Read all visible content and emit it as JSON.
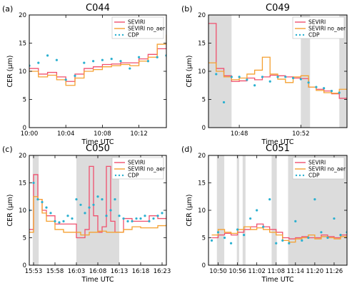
{
  "figure": {
    "ylabel": "CER (μm)",
    "xlabel": "Time UTC",
    "colors": {
      "SEVIRI": "#f0506e",
      "SEVIRI no_aer": "#f5a030",
      "CDP": "#2ab0d0",
      "shade": "#dcdcdc"
    }
  },
  "chart_data": [
    {
      "type": "line",
      "panel_label": "(a)",
      "title": "C044",
      "xlabel": "Time UTC",
      "ylabel": "CER (μm)",
      "xlim": [
        "10:00",
        "10:15"
      ],
      "ylim": [
        0,
        20
      ],
      "yticks": [
        0,
        5,
        10,
        15,
        20
      ],
      "xtick_labels": [
        "10:00",
        "10:04",
        "10:08",
        "10:12"
      ],
      "legend": [
        "SEVIRI",
        "SEVIRI no_aer",
        "CDP"
      ],
      "legend_position": "upper-right",
      "shaded_intervals": [],
      "series": [
        {
          "name": "SEVIRI",
          "style": "step",
          "x": [
            "10:00",
            "10:01",
            "10:02",
            "10:03",
            "10:04",
            "10:05",
            "10:06",
            "10:07",
            "10:08",
            "10:09",
            "10:10",
            "10:11",
            "10:12",
            "10:13",
            "10:14",
            "10:15"
          ],
          "values": [
            10.5,
            9.5,
            9.8,
            9.0,
            8.2,
            9.5,
            10.5,
            10.8,
            11.2,
            11.3,
            11.5,
            11.5,
            12.2,
            13.0,
            14.0,
            15.0
          ]
        },
        {
          "name": "SEVIRI no_aer",
          "style": "step",
          "x": [
            "10:00",
            "10:01",
            "10:02",
            "10:03",
            "10:04",
            "10:05",
            "10:06",
            "10:07",
            "10:08",
            "10:09",
            "10:10",
            "10:11",
            "10:12",
            "10:13",
            "10:14",
            "10:15"
          ],
          "values": [
            10.0,
            9.0,
            9.3,
            8.5,
            7.5,
            8.8,
            10.0,
            10.3,
            10.8,
            11.0,
            11.2,
            11.0,
            11.8,
            12.5,
            14.8,
            16.5
          ]
        },
        {
          "name": "CDP",
          "style": "scatter",
          "x": [
            "10:00",
            "10:01",
            "10:02",
            "10:03",
            "10:04",
            "10:05",
            "10:06",
            "10:07",
            "10:08",
            "10:09",
            "10:10",
            "10:11",
            "10:12",
            "10:13",
            "10:14",
            "10:15"
          ],
          "values": [
            11.0,
            11.5,
            12.8,
            12.0,
            8.5,
            9.2,
            11.5,
            11.8,
            12.0,
            12.2,
            11.8,
            10.5,
            12.5,
            11.8,
            12.5,
            12.8
          ]
        }
      ]
    },
    {
      "type": "line",
      "panel_label": "(b)",
      "title": "C049",
      "xlabel": "Time UTC",
      "ylabel": "CER (μm)",
      "xlim": [
        "10:46",
        "10:55"
      ],
      "ylim": [
        0,
        20
      ],
      "yticks": [
        0,
        5,
        10,
        15,
        20
      ],
      "xtick_labels": [
        "10:48",
        "10:52"
      ],
      "legend": [
        "SEVIRI",
        "SEVIRI no_aer",
        "CDP"
      ],
      "legend_position": "upper-right",
      "shaded_intervals": [
        [
          "10:46",
          "10:47.5"
        ],
        [
          "10:52",
          "10:52.6"
        ],
        [
          "10:54.5",
          "10:55"
        ]
      ],
      "series": [
        {
          "name": "SEVIRI",
          "style": "step",
          "x": [
            "10:46",
            "10:46.5",
            "10:47",
            "10:47.5",
            "10:48",
            "10:48.5",
            "10:49",
            "10:49.5",
            "10:50",
            "10:50.5",
            "10:51",
            "10:51.5",
            "10:52",
            "10:52.5",
            "10:53",
            "10:53.5",
            "10:54",
            "10:54.5",
            "10:55"
          ],
          "values": [
            18.5,
            10.5,
            9.2,
            8.2,
            8.3,
            8.8,
            8.5,
            9.0,
            9.3,
            9.2,
            9.0,
            8.8,
            8.7,
            7.2,
            6.8,
            6.5,
            6.0,
            5.2,
            5.2
          ]
        },
        {
          "name": "SEVIRI no_aer",
          "style": "step",
          "x": [
            "10:46",
            "10:46.5",
            "10:47",
            "10:47.5",
            "10:48",
            "10:48.5",
            "10:49",
            "10:49.5",
            "10:50",
            "10:50.5",
            "10:51",
            "10:51.5",
            "10:52",
            "10:52.5",
            "10:53",
            "10:53.5",
            "10:54",
            "10:54.5",
            "10:55"
          ],
          "values": [
            11.5,
            10.0,
            9.0,
            8.5,
            8.8,
            9.5,
            10.2,
            12.5,
            9.5,
            8.6,
            8.0,
            9.0,
            9.2,
            7.2,
            6.6,
            6.2,
            6.1,
            6.8,
            6.8
          ]
        },
        {
          "name": "CDP",
          "style": "scatter",
          "x": [
            "10:46.5",
            "10:47",
            "10:47.5",
            "10:48",
            "10:48.5",
            "10:49",
            "10:49.5",
            "10:50",
            "10:50.5",
            "10:51",
            "10:51.5",
            "10:52",
            "10:52.5",
            "10:53",
            "10:53.5",
            "10:54",
            "10:54.5"
          ],
          "values": [
            9.5,
            4.5,
            9.0,
            9.0,
            8.5,
            7.5,
            9.0,
            8.2,
            9.0,
            9.0,
            8.8,
            8.6,
            8.0,
            7.2,
            7.0,
            6.5,
            6.2
          ]
        }
      ]
    },
    {
      "type": "line",
      "panel_label": "(c)",
      "title": "C050",
      "xlabel": "Time UTC",
      "ylabel": "CER (μm)",
      "xlim": [
        "15:52",
        "16:24"
      ],
      "ylim": [
        0,
        20
      ],
      "yticks": [
        0,
        5,
        10,
        15,
        20
      ],
      "xtick_labels": [
        "15:53",
        "15:58",
        "16:03",
        "16:08",
        "16:13",
        "16:18",
        "16:23"
      ],
      "legend": [
        "SEVIRI",
        "SEVIRI no_aer",
        "CDP"
      ],
      "legend_position": "upper-right",
      "shaded_intervals": [
        [
          "15:52.8",
          "15:54.2"
        ],
        [
          "16:03",
          "16:13"
        ]
      ],
      "series": [
        {
          "name": "SEVIRI",
          "style": "step",
          "x": [
            "15:52",
            "15:53",
            "15:54",
            "15:55",
            "15:56",
            "15:58",
            "16:00",
            "16:02",
            "16:03",
            "16:05",
            "16:06",
            "16:07",
            "16:08",
            "16:09",
            "16:10",
            "16:11",
            "16:12",
            "16:14",
            "16:16",
            "16:18",
            "16:20",
            "16:22",
            "16:24"
          ],
          "values": [
            6.5,
            16.5,
            12.0,
            10.0,
            9.0,
            7.5,
            7.5,
            7.5,
            5.0,
            6.5,
            18.0,
            9.0,
            6.0,
            7.0,
            18.0,
            8.0,
            6.0,
            8.5,
            8.0,
            8.0,
            9.0,
            8.5,
            9.0
          ]
        },
        {
          "name": "SEVIRI no_aer",
          "style": "step",
          "x": [
            "15:52",
            "15:53",
            "15:54",
            "15:55",
            "15:56",
            "15:58",
            "16:00",
            "16:02",
            "16:04",
            "16:06",
            "16:08",
            "16:10",
            "16:12",
            "16:14",
            "16:16",
            "16:18",
            "16:20",
            "16:22",
            "16:24"
          ],
          "values": [
            6.0,
            12.5,
            12.0,
            9.5,
            8.0,
            6.5,
            6.0,
            6.0,
            5.5,
            6.0,
            6.2,
            6.0,
            6.0,
            6.5,
            7.0,
            6.8,
            6.8,
            7.2,
            7.5
          ]
        },
        {
          "name": "CDP",
          "style": "scatter",
          "x": [
            "15:52",
            "15:53",
            "15:54",
            "15:55",
            "15:56",
            "15:57",
            "15:58",
            "15:59",
            "16:00",
            "16:01",
            "16:02",
            "16:03",
            "16:04",
            "16:05",
            "16:06",
            "16:07",
            "16:08",
            "16:09",
            "16:10",
            "16:11",
            "16:12",
            "16:13",
            "16:14",
            "16:15",
            "16:16",
            "16:17",
            "16:18",
            "16:19",
            "16:20",
            "16:21",
            "16:22",
            "16:23"
          ],
          "values": [
            10.0,
            15.0,
            12.0,
            11.5,
            10.5,
            9.5,
            8.0,
            7.8,
            8.0,
            9.0,
            8.5,
            12.0,
            11.0,
            9.5,
            10.5,
            11.0,
            12.5,
            12.0,
            9.0,
            10.0,
            12.0,
            9.0,
            8.5,
            8.0,
            8.0,
            8.5,
            8.5,
            9.0,
            8.0,
            8.5,
            9.0,
            9.5
          ]
        }
      ]
    },
    {
      "type": "line",
      "panel_label": "(d)",
      "title": "C051",
      "xlabel": "Time UTC",
      "ylabel": "CER (μm)",
      "xlim": [
        "10:47",
        "11:30"
      ],
      "ylim": [
        0,
        20
      ],
      "yticks": [
        0,
        5,
        10,
        15,
        20
      ],
      "xtick_labels": [
        "10:50",
        "10:56",
        "11:02",
        "11:08",
        "11:14",
        "11:20",
        "11:26"
      ],
      "legend": [
        "SEVIRI",
        "SEVIRI no_aer",
        "CDP"
      ],
      "legend_position": "upper-right",
      "shaded_intervals": [
        [
          "10:49.6",
          "10:51.9"
        ],
        [
          "10:55.8",
          "10:56.5"
        ],
        [
          "10:57.6",
          "10:58.5"
        ],
        [
          "11:06.6",
          "11:08.2"
        ],
        [
          "11:11.7",
          "11:30"
        ]
      ],
      "series": [
        {
          "name": "SEVIRI",
          "style": "step",
          "x": [
            "10:48",
            "10:50",
            "10:52",
            "10:54",
            "10:56",
            "10:58",
            "11:00",
            "11:02",
            "11:04",
            "11:06",
            "11:08",
            "11:10",
            "11:12",
            "11:14",
            "11:16",
            "11:18",
            "11:20",
            "11:22",
            "11:24",
            "11:26",
            "11:28",
            "11:30"
          ],
          "values": [
            5.0,
            5.5,
            5.8,
            5.5,
            6.0,
            6.5,
            7.0,
            7.5,
            7.0,
            6.5,
            6.0,
            5.0,
            4.8,
            5.0,
            5.2,
            5.0,
            5.0,
            5.5,
            5.2,
            5.0,
            5.5,
            5.5
          ]
        },
        {
          "name": "SEVIRI no_aer",
          "style": "step",
          "x": [
            "10:48",
            "10:50",
            "10:52",
            "10:54",
            "10:56",
            "10:58",
            "11:00",
            "11:02",
            "11:04",
            "11:06",
            "11:08",
            "11:10",
            "11:12",
            "11:14",
            "11:16",
            "11:18",
            "11:20",
            "11:22",
            "11:24",
            "11:26",
            "11:28",
            "11:30"
          ],
          "values": [
            5.5,
            6.5,
            6.0,
            5.8,
            6.5,
            7.0,
            6.5,
            6.8,
            6.5,
            6.0,
            5.5,
            4.5,
            4.2,
            4.8,
            5.0,
            5.5,
            4.8,
            5.2,
            5.0,
            4.8,
            5.2,
            5.2
          ]
        },
        {
          "name": "CDP",
          "style": "scatter",
          "x": [
            "10:48",
            "10:50",
            "10:52",
            "10:54",
            "10:56",
            "10:58",
            "11:00",
            "11:02",
            "11:04",
            "11:06",
            "11:08",
            "11:10",
            "11:12",
            "11:14",
            "11:16",
            "11:18",
            "11:20",
            "11:22",
            "11:24",
            "11:26",
            "11:28",
            "11:30"
          ],
          "values": [
            4.5,
            6.0,
            5.0,
            4.0,
            6.5,
            5.5,
            8.5,
            10.0,
            7.0,
            12.0,
            4.0,
            4.5,
            4.0,
            8.0,
            4.5,
            5.0,
            12.0,
            6.0,
            5.0,
            8.5,
            5.5,
            6.0
          ]
        }
      ]
    }
  ]
}
